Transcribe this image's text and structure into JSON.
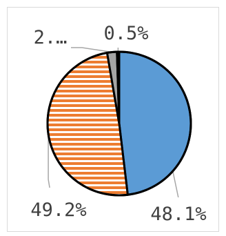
{
  "chart_data": {
    "type": "pie",
    "start_angle_deg": 0,
    "direction": "clockwise",
    "slices": [
      {
        "value": 48.1,
        "label": "48.1%",
        "color": "#5b9bd5",
        "pattern": "solid"
      },
      {
        "value": 49.2,
        "label": "49.2%",
        "color": "#ed7d31",
        "pattern": "horizontal-stripes"
      },
      {
        "value": 2.2,
        "label": "2.…",
        "color": "#a5a5a5",
        "pattern": "solid"
      },
      {
        "value": 0.5,
        "label": "0.5%",
        "color": "#000000",
        "pattern": "solid"
      }
    ],
    "legend": "none",
    "outline_color": "#000000",
    "leader_line_color": "#a6a6a6"
  }
}
